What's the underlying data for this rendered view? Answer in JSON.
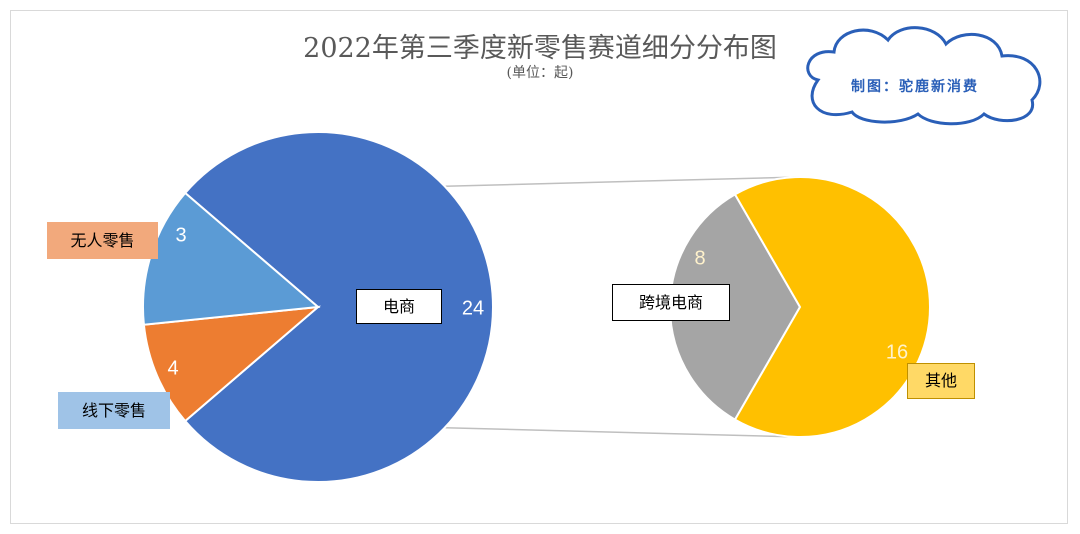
{
  "chart_data": {
    "type": "pie",
    "subtype": "pie-of-pie",
    "title": "2022年第三季度新零售赛道细分分布图",
    "subtitle": "(单位：起)",
    "main_pie": [
      {
        "name": "电商",
        "value": 24,
        "color": "#4472c4"
      },
      {
        "name": "无人零售",
        "value": 3,
        "color": "#ed7d31"
      },
      {
        "name": "线下零售",
        "value": 4,
        "color": "#5b9bd5"
      }
    ],
    "secondary_pie": [
      {
        "name": "跨境电商",
        "value": 8,
        "color": "#a5a5a5"
      },
      {
        "name": "其他",
        "value": 16,
        "color": "#ffc000"
      }
    ],
    "exploded_from": "电商",
    "connector_color": "#bfbfbf"
  },
  "watermark": {
    "text": "制图：驼鹿新消费",
    "color": "#2a5fb8"
  }
}
